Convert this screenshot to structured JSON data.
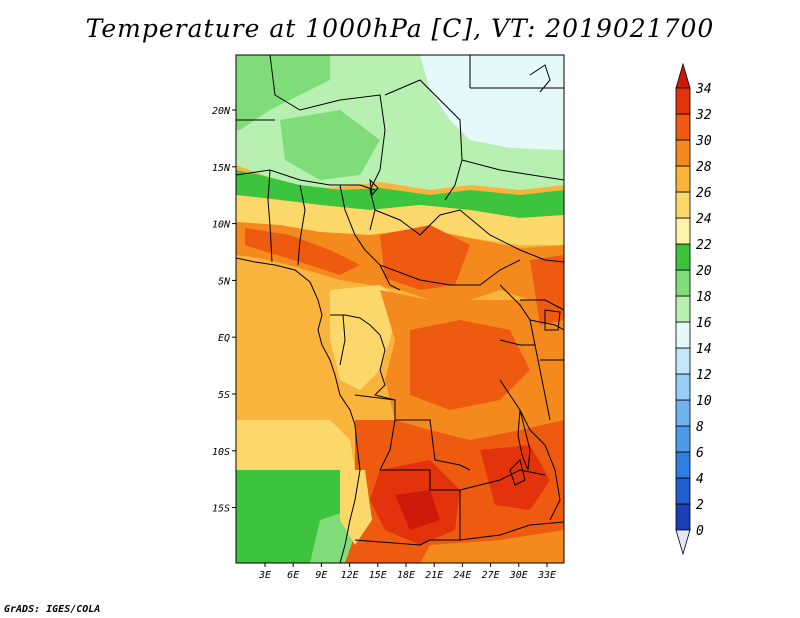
{
  "title": "Temperature at 1000hPa [C], VT: 2019021700",
  "credit": "GrADS: IGES/COLA",
  "map": {
    "lat_ticks": [
      "20N",
      "15N",
      "10N",
      "5N",
      "EQ",
      "5S",
      "10S",
      "15S"
    ],
    "lon_ticks": [
      "3E",
      "6E",
      "9E",
      "12E",
      "15E",
      "18E",
      "21E",
      "24E",
      "27E",
      "30E",
      "33E"
    ]
  },
  "colorbar": {
    "levels": [
      "0",
      "2",
      "4",
      "6",
      "8",
      "10",
      "12",
      "14",
      "16",
      "18",
      "20",
      "22",
      "24",
      "26",
      "28",
      "30",
      "32",
      "34"
    ],
    "colors": [
      "#1a1a7a",
      "#1c3fb4",
      "#1f5fd0",
      "#2f7fe0",
      "#4c9ae8",
      "#6fb3f0",
      "#95cdf5",
      "#c4e7fa",
      "#e6f9fa",
      "#b7f0b0",
      "#7fdc78",
      "#3cc43e",
      "#fff3a8",
      "#fcd86a",
      "#f9b43e",
      "#f48a1d",
      "#ee5a10",
      "#e2330d",
      "#cc1a0a"
    ]
  }
}
